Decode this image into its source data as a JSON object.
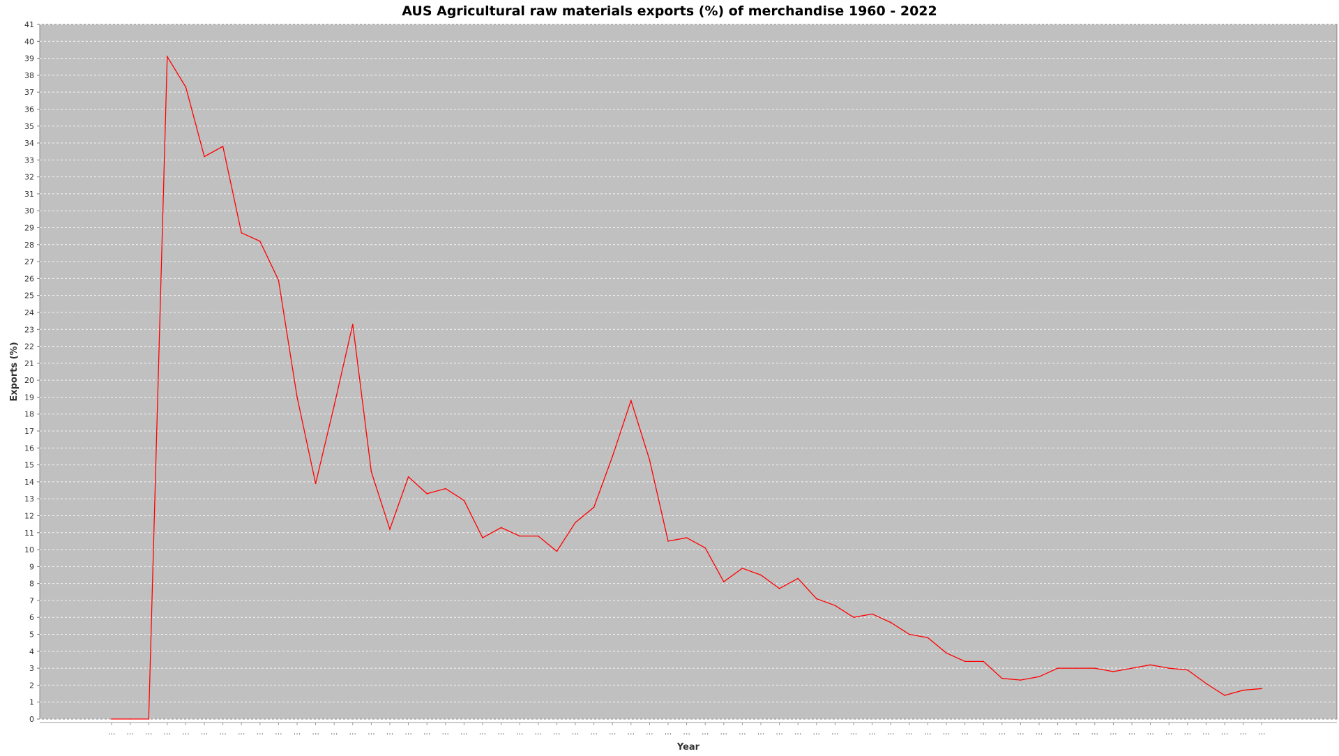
{
  "chart_data": {
    "type": "line",
    "title": "AUS Agricultural raw materials exports (%) of merchandise 1960 - 2022",
    "xlabel": "Year",
    "ylabel": "Exports (%)",
    "ylim": [
      0,
      41
    ],
    "yticks": [
      0,
      1,
      2,
      3,
      4,
      5,
      6,
      7,
      8,
      9,
      10,
      11,
      12,
      13,
      14,
      15,
      16,
      17,
      18,
      19,
      20,
      21,
      22,
      23,
      24,
      25,
      26,
      27,
      28,
      29,
      30,
      31,
      32,
      33,
      34,
      35,
      36,
      37,
      38,
      39,
      40,
      41
    ],
    "x_tick_label": "...",
    "grid": true,
    "colors": {
      "background": "#c0c0c0",
      "line": "#ff0000"
    },
    "series": [
      {
        "values": [
          0,
          0,
          0,
          39.1,
          37.3,
          33.2,
          33.8,
          28.7,
          28.2,
          25.9,
          19,
          13.9,
          18.5,
          23.3,
          14.6,
          11.2,
          14.3,
          13.3,
          13.6,
          12.9,
          10.7,
          11.3,
          10.8,
          10.8,
          9.9,
          11.6,
          12.5,
          15.5,
          18.8,
          15.3,
          10.5,
          10.7,
          10.1,
          8.1,
          8.9,
          8.5,
          7.7,
          8.3,
          7.1,
          6.7,
          6,
          6.2,
          5.7,
          5,
          4.8,
          3.9,
          3.4,
          3.4,
          2.4,
          2.3,
          2.5,
          3,
          3,
          3,
          2.8,
          3,
          3.2,
          3,
          2.9,
          2.1,
          1.4,
          1.7,
          1.8
        ]
      }
    ]
  }
}
